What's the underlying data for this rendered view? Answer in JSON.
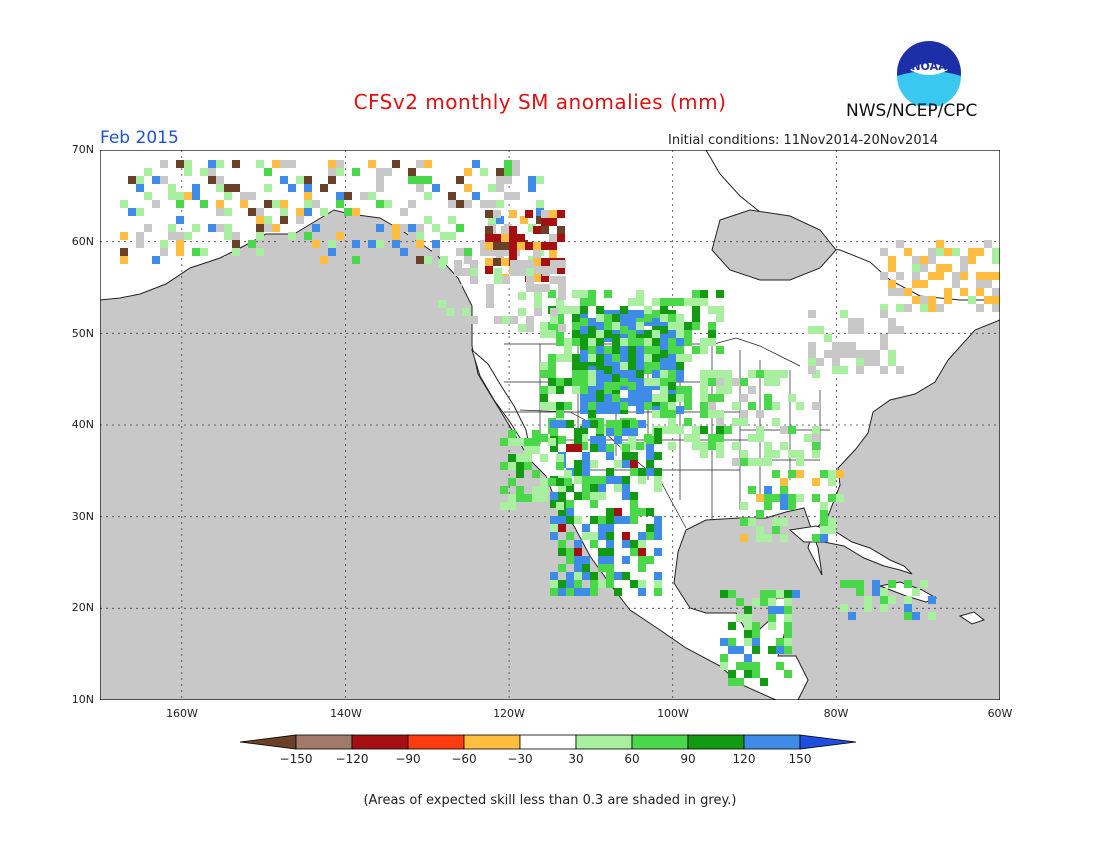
{
  "title": "CFSv2 monthly SM anomalies (mm)",
  "agency": "NWS/NCEP/CPC",
  "logo_text": "NOAA",
  "period": "Feb 2015",
  "initial_conditions": "Initial conditions: 11Nov2014-20Nov2014",
  "lat_labels": [
    "70N",
    "60N",
    "50N",
    "40N",
    "30N",
    "20N",
    "10N"
  ],
  "lon_labels": [
    "160W",
    "140W",
    "120W",
    "100W",
    "80W",
    "60W"
  ],
  "colorbar": {
    "labels": [
      "-150",
      "-120",
      "-90",
      "-60",
      "-30",
      "30",
      "60",
      "90",
      "120",
      "150"
    ],
    "colors": [
      "#6b4028",
      "#a27a6c",
      "#a50f0f",
      "#ff3b10",
      "#ffbe40",
      "#ffffff",
      "#a8f0a0",
      "#4ad84a",
      "#129a12",
      "#3e8ce8",
      "#1e4ee0"
    ]
  },
  "footnote": "(Areas of expected skill less than 0.3 are shaded in grey.)",
  "colors": {
    "ocean": "#c8c8c8",
    "land_no_anomaly": "#ffffff",
    "low_skill": "#c8c8c8",
    "title": "#e01010",
    "period": "#1e52d8"
  },
  "map_extent": {
    "lon_range": [
      "170W",
      "60W"
    ],
    "lat_range": [
      "10N",
      "70N"
    ]
  }
}
